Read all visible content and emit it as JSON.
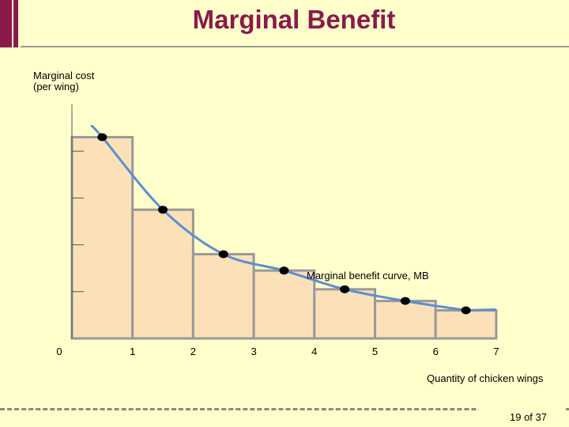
{
  "slide": {
    "title": "Marginal Benefit",
    "page_number": "19 of 37"
  },
  "chart_data": {
    "type": "bar",
    "title": "",
    "xlabel": "Quantity of chicken wings",
    "ylabel_line1": "Marginal cost",
    "ylabel_line2": "(per wing)",
    "x_ticks": [
      "0",
      "1",
      "2",
      "3",
      "4",
      "5",
      "6",
      "7"
    ],
    "categories": [
      "1",
      "2",
      "3",
      "4",
      "5",
      "6",
      "7"
    ],
    "values": [
      4.3,
      2.75,
      1.8,
      1.45,
      1.05,
      0.8,
      0.6
    ],
    "ylim": [
      0,
      5
    ],
    "curve_label": "Marginal benefit curve, MB",
    "colors": {
      "bar_fill": "#fbe0b8",
      "bar_stroke": "#999999",
      "curve": "#5b8fd0",
      "point": "#000000",
      "axis": "#555555"
    }
  }
}
